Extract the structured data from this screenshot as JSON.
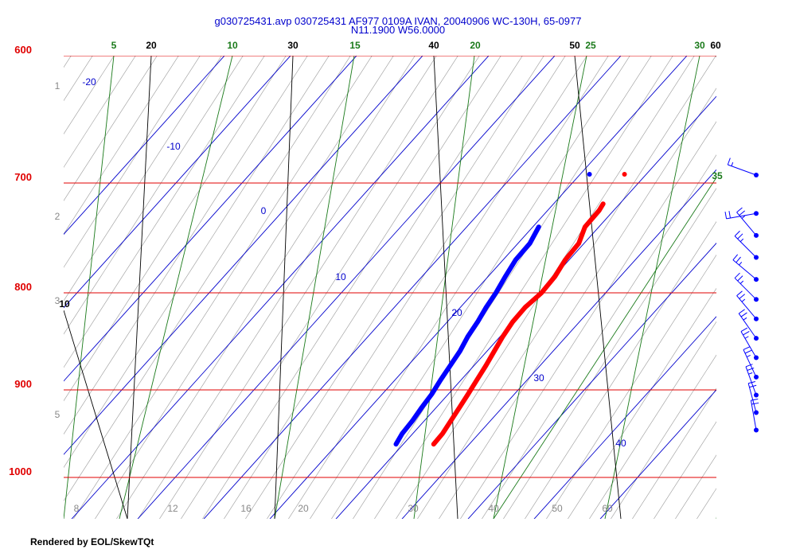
{
  "title_line1": "g030725431.avp 030725431 AF977 0109A IVAN, 20040906 WC-130H, 65-0977",
  "title_line2": "N11.1900 W56.0000",
  "credit": "Rendered by EOL/SkewTQt",
  "colors": {
    "isobar": "#e00000",
    "isotherm": "#0000cc",
    "mixing_ratio": "#1a7a1a",
    "dry_adiabat": "#000000",
    "moist_adiabat": "#999999",
    "temperature": "#ff0000",
    "dewpoint": "#0000ff",
    "wind": "#0000ff"
  },
  "chart_data": {
    "type": "skew-t",
    "pressure_labels": [
      "600",
      "700",
      "800",
      "900",
      "1000"
    ],
    "isotherm_labels": [
      "-20",
      "-10",
      "0",
      "10",
      "20",
      "30",
      "40"
    ],
    "mixing_ratio_labels": [
      "5",
      "10",
      "15",
      "20",
      "25",
      "30",
      "35"
    ],
    "dry_adiabat_labels": [
      "20",
      "30",
      "40",
      "50",
      "60",
      "10"
    ],
    "bottom_labels": [
      "8",
      "12",
      "16",
      "20",
      "30",
      "40",
      "50",
      "60"
    ],
    "left_labels": [
      "1",
      "2",
      "3",
      "5"
    ],
    "series": [
      {
        "name": "temperature",
        "points": [
          [
            719,
            17.5
          ],
          [
            725,
            17.8
          ],
          [
            740,
            17.9
          ],
          [
            755,
            19.2
          ],
          [
            770,
            19.4
          ],
          [
            785,
            20.1
          ],
          [
            800,
            20.3
          ],
          [
            815,
            19.8
          ],
          [
            830,
            19.9
          ],
          [
            845,
            20.4
          ],
          [
            860,
            21.1
          ],
          [
            875,
            21.8
          ],
          [
            890,
            22.4
          ],
          [
            905,
            23.0
          ],
          [
            920,
            23.5
          ],
          [
            935,
            24.0
          ],
          [
            950,
            24.5
          ],
          [
            962,
            24.6
          ]
        ]
      },
      {
        "name": "dewpoint",
        "points": [
          [
            740,
            10.9
          ],
          [
            755,
            11.8
          ],
          [
            770,
            11.9
          ],
          [
            785,
            12.6
          ],
          [
            800,
            13.4
          ],
          [
            815,
            13.9
          ],
          [
            830,
            14.6
          ],
          [
            845,
            15.1
          ],
          [
            860,
            15.9
          ],
          [
            875,
            16.4
          ],
          [
            890,
            16.9
          ],
          [
            905,
            17.5
          ],
          [
            920,
            17.8
          ],
          [
            935,
            18.2
          ],
          [
            950,
            18.4
          ],
          [
            962,
            18.9
          ]
        ]
      }
    ],
    "isolated_points": [
      {
        "name": "dewpoint",
        "pressure": 700,
        "value": 12.6
      },
      {
        "name": "temperature",
        "pressure": 700,
        "value": 17.9
      }
    ],
    "winds": [
      {
        "pressure": 700,
        "direction": 110,
        "speed": 15
      },
      {
        "pressure": 735,
        "direction": 80,
        "speed": 20
      },
      {
        "pressure": 755,
        "direction": 140,
        "speed": 25
      },
      {
        "pressure": 775,
        "direction": 135,
        "speed": 25
      },
      {
        "pressure": 795,
        "direction": 130,
        "speed": 25
      },
      {
        "pressure": 815,
        "direction": 135,
        "speed": 25
      },
      {
        "pressure": 835,
        "direction": 140,
        "speed": 25
      },
      {
        "pressure": 855,
        "direction": 145,
        "speed": 25
      },
      {
        "pressure": 875,
        "direction": 150,
        "speed": 25
      },
      {
        "pressure": 895,
        "direction": 155,
        "speed": 25
      },
      {
        "pressure": 915,
        "direction": 160,
        "speed": 25
      },
      {
        "pressure": 935,
        "direction": 165,
        "speed": 20
      },
      {
        "pressure": 955,
        "direction": 170,
        "speed": 20
      }
    ]
  }
}
